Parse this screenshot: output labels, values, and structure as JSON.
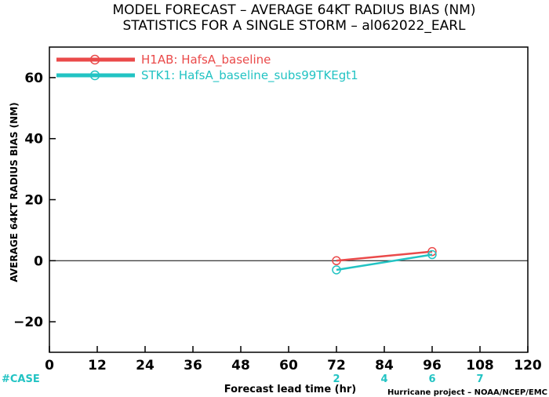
{
  "chart_data": {
    "type": "line",
    "title": "MODEL FORECAST – AVERAGE 64KT RADIUS BIAS (NM)",
    "subtitle": "STATISTICS FOR A SINGLE STORM – al062022_EARL",
    "xlabel": "Forecast lead time (hr)",
    "ylabel": "AVERAGE 64KT RADIUS BIAS (NM)",
    "credit": "Hurricane project – NOAA/NCEP/EMC",
    "xlim": [
      0,
      120
    ],
    "ylim": [
      -30,
      70
    ],
    "xticks": [
      0,
      12,
      24,
      36,
      48,
      60,
      72,
      84,
      96,
      108,
      120
    ],
    "yticks": [
      -20,
      0,
      20,
      40,
      60
    ],
    "zero_line": true,
    "legend_position": "top-left",
    "case_label": "#CASE",
    "case_color": "#22c3c3",
    "cases": [
      {
        "x": 72,
        "count": "2"
      },
      {
        "x": 84,
        "count": "4"
      },
      {
        "x": 96,
        "count": "6"
      },
      {
        "x": 108,
        "count": "7"
      }
    ],
    "series": [
      {
        "name": "H1AB: HafsA_baseline",
        "color": "#ea4a4a",
        "x": [
          72,
          96
        ],
        "y": [
          0,
          3
        ]
      },
      {
        "name": "STK1: HafsA_baseline_subs99TKEgt1",
        "color": "#22c3c3",
        "x": [
          72,
          96
        ],
        "y": [
          -3,
          2
        ]
      }
    ]
  }
}
